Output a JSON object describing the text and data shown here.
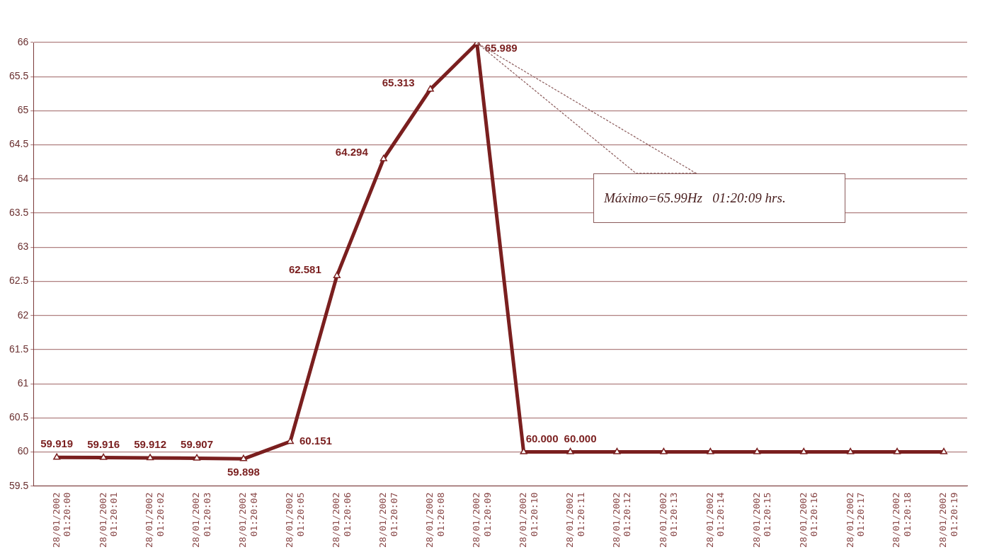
{
  "chart_data": {
    "type": "line",
    "categories": [
      "28/01/2002 01:20:00",
      "28/01/2002 01:20:01",
      "28/01/2002 01:20:02",
      "28/01/2002 01:20:03",
      "28/01/2002 01:20:04",
      "28/01/2002 01:20:05",
      "28/01/2002 01:20:06",
      "28/01/2002 01:20:07",
      "28/01/2002 01:20:08",
      "28/01/2002 01:20:09",
      "28/01/2002 01:20:10",
      "28/01/2002 01:20:11",
      "28/01/2002 01:20:12",
      "28/01/2002 01:20:13",
      "28/01/2002 01:20:14",
      "28/01/2002 01:20:15",
      "28/01/2002 01:20:16",
      "28/01/2002 01:20:17",
      "28/01/2002 01:20:18",
      "28/01/2002 01:20:19"
    ],
    "values": [
      59.919,
      59.916,
      59.912,
      59.907,
      59.898,
      60.151,
      62.581,
      64.294,
      65.313,
      65.989,
      60.0,
      60.0,
      60.0,
      60.0,
      60.0,
      60.0,
      60.0,
      60.0,
      60.0,
      60.0
    ],
    "value_labels": [
      "59.919",
      "59.916",
      "59.912",
      "59.907",
      "59.898",
      "60.151",
      "62.581",
      "64.294",
      "65.313",
      "65.989",
      "60.000",
      "60.000",
      null,
      null,
      null,
      null,
      null,
      null,
      null,
      null
    ],
    "color": "#7a1f1f",
    "ylim": [
      59.5,
      66
    ],
    "yticks": [
      59.5,
      60,
      60.5,
      61,
      61.5,
      62,
      62.5,
      63,
      63.5,
      64,
      64.5,
      65,
      65.5,
      66
    ],
    "grid": "y",
    "legend": false,
    "marker": "triangle",
    "line_style": "solid",
    "annotations": [
      "Máximo=65.99Hz   01:20:09 hrs."
    ]
  }
}
